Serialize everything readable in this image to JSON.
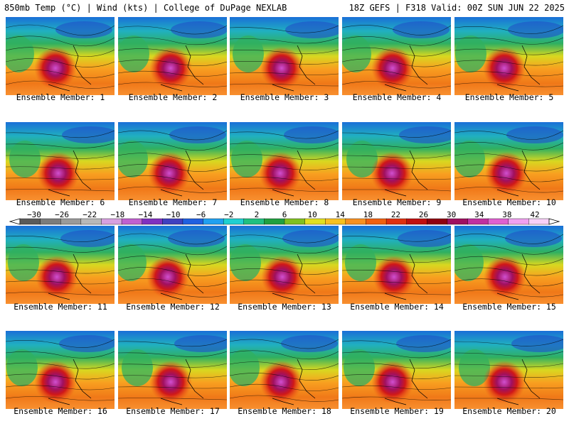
{
  "header": {
    "left": "850mb Temp (°C) | Wind (kts) | College of DuPage NEXLAB",
    "right": "18Z GEFS | F318 Valid: 00Z SUN JUN 22 2025"
  },
  "members": [
    "Ensemble Member: 1",
    "Ensemble Member: 2",
    "Ensemble Member: 3",
    "Ensemble Member: 4",
    "Ensemble Member: 5",
    "Ensemble Member: 6",
    "Ensemble Member: 7",
    "Ensemble Member: 8",
    "Ensemble Member: 9",
    "Ensemble Member: 10",
    "Ensemble Member: 11",
    "Ensemble Member: 12",
    "Ensemble Member: 13",
    "Ensemble Member: 14",
    "Ensemble Member: 15",
    "Ensemble Member: 16",
    "Ensemble Member: 17",
    "Ensemble Member: 18",
    "Ensemble Member: 19",
    "Ensemble Member: 20"
  ],
  "colorbar": {
    "labels": [
      "−30",
      "−26",
      "−22",
      "−18",
      "−14",
      "−10",
      "−6",
      "−2",
      "2",
      "6",
      "10",
      "14",
      "18",
      "22",
      "26",
      "30",
      "34",
      "38",
      "42"
    ],
    "colors": [
      "#5a5a5a",
      "#7c7c7c",
      "#9a9a9a",
      "#b8b8b8",
      "#d8a0e0",
      "#c060d0",
      "#8030c0",
      "#4040c0",
      "#2060e0",
      "#20a0f0",
      "#20d0d0",
      "#20c080",
      "#20a040",
      "#80c020",
      "#e0e020",
      "#f8c020",
      "#f89020",
      "#f06010",
      "#e03010",
      "#c01010",
      "#900010",
      "#a01060",
      "#c030a0",
      "#e060d0",
      "#f0a0f0",
      "#f8d0f8"
    ]
  }
}
